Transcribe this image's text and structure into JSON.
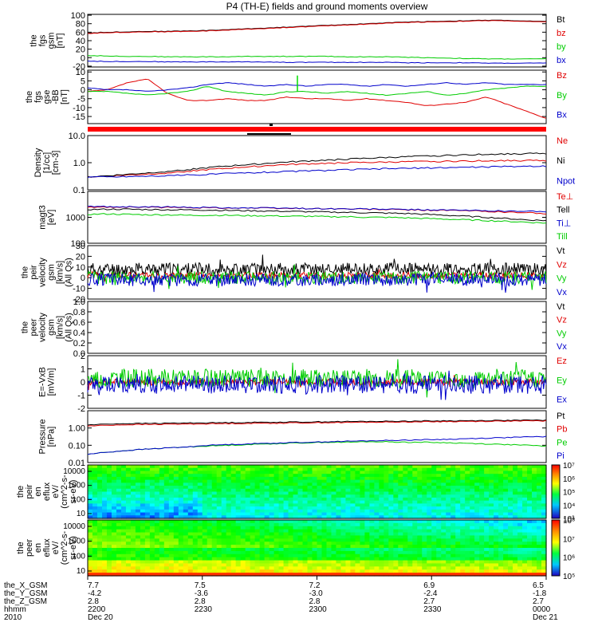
{
  "title": "P4 (TH-E) fields and ground moments overview",
  "colors": {
    "black": "#000000",
    "red": "#e00000",
    "green": "#00cc00",
    "blue": "#0000cc",
    "spike": "#00dd00"
  },
  "chart_data": [
    {
      "type": "line",
      "id": "fgs_gsm",
      "ylabel": [
        "the",
        "fgs",
        "gsm",
        "[nT]"
      ],
      "ylim": [
        -22,
        102
      ],
      "yticks": [
        "100",
        "80",
        "60",
        "40",
        "20",
        "0",
        "-20"
      ],
      "ytick_values": [
        100,
        80,
        60,
        40,
        20,
        0,
        -20
      ],
      "series": [
        {
          "name": "Bt",
          "color": "black",
          "values": [
            58,
            60,
            61,
            62,
            62,
            63,
            64,
            66,
            68,
            70,
            72,
            74,
            76,
            78,
            80,
            82,
            84,
            85,
            86,
            87,
            88,
            88,
            86,
            85
          ]
        },
        {
          "name": "bz",
          "color": "red",
          "values": [
            57,
            59,
            60,
            61,
            61,
            62,
            63,
            65,
            67,
            69,
            71,
            73,
            75,
            77,
            79,
            81,
            83,
            84,
            85,
            86,
            87,
            87,
            85,
            84
          ]
        },
        {
          "name": "by",
          "color": "green",
          "values": [
            5,
            4,
            3,
            3,
            2,
            2,
            2,
            2,
            3,
            3,
            3,
            3,
            3,
            2,
            2,
            2,
            1,
            0,
            -1,
            -2,
            -3,
            -3,
            -3,
            -3
          ]
        },
        {
          "name": "bx",
          "color": "blue",
          "values": [
            -8,
            -9,
            -9,
            -9,
            -10,
            -10,
            -10,
            -10,
            -10,
            -10,
            -11,
            -11,
            -11,
            -11,
            -11,
            -11,
            -12,
            -12,
            -12,
            -12,
            -13,
            -13,
            -13,
            -13
          ]
        }
      ]
    },
    {
      "type": "line",
      "id": "fgs_gse",
      "ylabel": [
        "the",
        "fgs",
        "gse",
        "-BB",
        "[nT]"
      ],
      "ylim": [
        -19,
        11
      ],
      "yticks": [
        "10",
        "5",
        "0",
        "-5",
        "-10",
        "-15"
      ],
      "ytick_values": [
        10,
        5,
        0,
        -5,
        -10,
        -15
      ],
      "series": [
        {
          "name": "Bz",
          "color": "red",
          "values": [
            -1,
            0,
            4,
            6,
            -2,
            -6,
            -6,
            -5,
            -6,
            -6,
            -4,
            -5,
            -5,
            -6,
            -5,
            -6,
            -7,
            -9,
            -8,
            -7,
            -4,
            -8,
            -12,
            -16
          ]
        },
        {
          "name": "By",
          "color": "green",
          "values": [
            -1,
            -1,
            -2,
            -3,
            -2,
            -1,
            2,
            -1,
            -2,
            -3,
            -1,
            -1,
            -2,
            -1,
            -2,
            -3,
            -2,
            -1,
            -3,
            -2,
            0,
            1,
            2,
            2
          ]
        },
        {
          "name": "Bx",
          "color": "blue",
          "values": [
            1,
            0,
            0,
            -1,
            0,
            1,
            3,
            4,
            3,
            2,
            3,
            2,
            3,
            3,
            2,
            3,
            2,
            3,
            4,
            3,
            4,
            3,
            3,
            3
          ]
        }
      ]
    },
    {
      "type": "line",
      "id": "density",
      "scale": "log",
      "ylabel": [
        "Density",
        "[1/cc]",
        "[cm-3]"
      ],
      "ylim": [
        0.1,
        10
      ],
      "yticks": [
        "10.0",
        "1.0",
        "0.1"
      ],
      "ytick_values": [
        10,
        1,
        0.1
      ],
      "series": [
        {
          "name": "Ne",
          "color": "red",
          "values": [
            0.3,
            0.32,
            0.35,
            0.38,
            0.42,
            0.48,
            0.55,
            0.62,
            0.7,
            0.78,
            0.85,
            0.9,
            0.95,
            1.0,
            1.02,
            1.05,
            1.08,
            1.1,
            1.12,
            1.15,
            1.18,
            1.2,
            1.2,
            1.2
          ]
        },
        {
          "name": "Ni",
          "color": "black",
          "values": [
            0.3,
            0.33,
            0.37,
            0.42,
            0.48,
            0.55,
            0.65,
            0.75,
            0.85,
            0.95,
            1.05,
            1.15,
            1.25,
            1.35,
            1.45,
            1.55,
            1.65,
            1.75,
            1.85,
            1.95,
            2.05,
            2.1,
            2.15,
            2.2
          ]
        },
        {
          "name": "Npot",
          "color": "blue",
          "values": [
            0.3,
            0.3,
            0.31,
            0.32,
            0.33,
            0.35,
            0.37,
            0.4,
            0.42,
            0.45,
            0.47,
            0.5,
            0.52,
            0.55,
            0.57,
            0.6,
            0.62,
            0.64,
            0.66,
            0.68,
            0.7,
            0.72,
            0.74,
            0.75
          ]
        }
      ]
    },
    {
      "type": "line",
      "id": "temperature",
      "scale": "log",
      "ylabel": [
        "magt3",
        "[eV]"
      ],
      "ylim": [
        100,
        10000
      ],
      "yticks": [
        "1000",
        "100"
      ],
      "ytick_values": [
        1000,
        100
      ],
      "series": [
        {
          "name": "Te⊥",
          "color": "red",
          "values": [
            2400,
            2500,
            2500,
            2450,
            2400,
            2400,
            2350,
            2300,
            2300,
            2250,
            2200,
            2200,
            2150,
            2100,
            2050,
            2000,
            1950,
            1900,
            1850,
            1800,
            1700,
            1600,
            1500,
            1400
          ]
        },
        {
          "name": "Tell",
          "color": "black",
          "values": [
            2000,
            2050,
            2050,
            2000,
            1950,
            1950,
            1900,
            1850,
            1800,
            1750,
            1700,
            1650,
            1600,
            1550,
            1500,
            1450,
            1400,
            1300,
            1200,
            1100,
            1000,
            900,
            800,
            750
          ]
        },
        {
          "name": "Ti⊥",
          "color": "blue",
          "values": [
            2600,
            2600,
            2550,
            2500,
            2500,
            2450,
            2400,
            2350,
            2300,
            2300,
            2250,
            2200,
            2150,
            2100,
            2100,
            2050,
            2000,
            1950,
            1900,
            1850,
            1800,
            1750,
            1700,
            1700
          ]
        },
        {
          "name": "Till",
          "color": "green",
          "values": [
            1300,
            1350,
            1300,
            1250,
            1250,
            1200,
            1200,
            1200,
            1150,
            1150,
            1100,
            1100,
            1050,
            1050,
            1000,
            1000,
            950,
            900,
            850,
            800,
            750,
            700,
            650,
            600
          ]
        }
      ]
    },
    {
      "type": "line",
      "id": "peir_velocity",
      "ylabel": [
        "the",
        "peir",
        "velocity",
        "gsm",
        "[km/s]",
        "(All Qs)"
      ],
      "ylim": [
        -20,
        30
      ],
      "yticks": [
        "30",
        "20",
        "10",
        "0",
        "-10",
        "-20"
      ],
      "ytick_values": [
        30,
        20,
        10,
        0,
        -10,
        -20
      ],
      "series": [
        {
          "name": "Vt",
          "color": "black",
          "mean": 8,
          "amp": 6,
          "seed": 11
        },
        {
          "name": "Vz",
          "color": "red",
          "mean": 2,
          "amp": 3,
          "seed": 23
        },
        {
          "name": "Vy",
          "color": "green",
          "mean": 0,
          "amp": 6,
          "seed": 37
        },
        {
          "name": "Vx",
          "color": "blue",
          "mean": -2,
          "amp": 6,
          "seed": 51
        }
      ]
    },
    {
      "type": "line",
      "id": "peer_velocity",
      "ylabel": [
        "the",
        "peer",
        "velocity",
        "gsm",
        "[km/s]",
        "(All Qs)"
      ],
      "ylim": [
        0,
        1.0
      ],
      "yticks": [
        "1.0",
        "0.8",
        "0.6",
        "0.4",
        "0.2",
        "0.0"
      ],
      "ytick_values": [
        1.0,
        0.8,
        0.6,
        0.4,
        0.2,
        0.0
      ],
      "series": [
        {
          "name": "Vt",
          "color": "black",
          "values": []
        },
        {
          "name": "Vz",
          "color": "red",
          "values": []
        },
        {
          "name": "Vy",
          "color": "green",
          "values": []
        },
        {
          "name": "Vx",
          "color": "blue",
          "values": []
        }
      ]
    },
    {
      "type": "line",
      "id": "efield",
      "ylabel": [
        "E=-VxB",
        "[mV/m]"
      ],
      "ylim": [
        -2,
        2
      ],
      "yticks": [
        "2",
        "1",
        "0",
        "-1",
        "-2"
      ],
      "ytick_values": [
        2,
        1,
        0,
        -1,
        -2
      ],
      "series": [
        {
          "name": "Ez",
          "color": "red",
          "mean": 0,
          "amp": 0.25,
          "seed": 71
        },
        {
          "name": "Ey",
          "color": "green",
          "mean": 0.3,
          "amp": 0.7,
          "seed": 83
        },
        {
          "name": "Ex",
          "color": "blue",
          "mean": -0.2,
          "amp": 0.7,
          "seed": 97
        }
      ]
    },
    {
      "type": "line",
      "id": "pressure",
      "scale": "log",
      "ylabel": [
        "Pressure",
        "[nPa]"
      ],
      "ylim": [
        0.01,
        10
      ],
      "yticks": [
        "1.00",
        "0.10",
        "0.01"
      ],
      "ytick_values": [
        1,
        0.1,
        0.01
      ],
      "series": [
        {
          "name": "Pt",
          "color": "black",
          "values": [
            1.5,
            1.7,
            1.8,
            1.85,
            1.9,
            1.95,
            2.0,
            2.05,
            2.1,
            2.15,
            2.2,
            2.25,
            2.3,
            2.35,
            2.4,
            2.45,
            2.5,
            2.55,
            2.6,
            2.65,
            2.7,
            2.75,
            2.8,
            2.85
          ]
        },
        {
          "name": "Pb",
          "color": "red",
          "values": [
            1.3,
            1.45,
            1.55,
            1.6,
            1.65,
            1.7,
            1.75,
            1.8,
            1.85,
            1.9,
            1.95,
            2.0,
            2.05,
            2.1,
            2.15,
            2.2,
            2.25,
            2.3,
            2.35,
            2.4,
            2.45,
            2.5,
            2.55,
            2.6
          ]
        },
        {
          "name": "Pe",
          "color": "green",
          "values": [
            0.03,
            0.04,
            0.05,
            0.06,
            0.07,
            0.08,
            0.09,
            0.1,
            0.11,
            0.12,
            0.13,
            0.14,
            0.15,
            0.15,
            0.16,
            0.16,
            0.15,
            0.15,
            0.14,
            0.13,
            0.12,
            0.11,
            0.1,
            0.09
          ]
        },
        {
          "name": "Pi",
          "color": "blue",
          "values": [
            0.03,
            0.04,
            0.05,
            0.06,
            0.07,
            0.08,
            0.1,
            0.11,
            0.12,
            0.13,
            0.14,
            0.15,
            0.16,
            0.17,
            0.18,
            0.19,
            0.2,
            0.21,
            0.22,
            0.24,
            0.26,
            0.28,
            0.3,
            0.32
          ]
        }
      ]
    },
    {
      "type": "heatmap",
      "id": "peir_spec",
      "ylabel": [
        "the",
        "peir",
        "en",
        "eflux",
        "eV/",
        "(cm^2-s-",
        "sr-eV)"
      ],
      "yticks": [
        "10000",
        "1000",
        "100",
        "10"
      ],
      "colorbar_ticks": [
        "10⁷",
        "10⁶",
        "10⁵",
        "10⁴",
        "10³"
      ],
      "colorbar_exponents": [
        7,
        6,
        5,
        4,
        3
      ]
    },
    {
      "type": "heatmap",
      "id": "peer_spec",
      "ylabel": [
        "the",
        "peer",
        "en",
        "eflux",
        "eV/",
        "(cm^2-s-",
        "sr-eV)"
      ],
      "yticks": [
        "10000",
        "1000",
        "100",
        "10"
      ],
      "colorbar_ticks": [
        "10⁸",
        "10⁷",
        "10⁶",
        "10⁵"
      ],
      "colorbar_exponents": [
        8,
        7,
        6,
        5
      ]
    }
  ],
  "xaxis": {
    "row_labels": [
      "the_X_GSM",
      "the_Y_GSM",
      "the_Z_GSM",
      "hhmm",
      "2010"
    ],
    "columns": [
      {
        "values": [
          "7.7",
          "-4.2",
          "2.8",
          "2200",
          "Dec 20"
        ]
      },
      {
        "values": [
          "7.5",
          "-3.6",
          "2.8",
          "2230",
          ""
        ]
      },
      {
        "values": [
          "7.2",
          "-3.0",
          "2.8",
          "2300",
          ""
        ]
      },
      {
        "values": [
          "6.9",
          "-2.4",
          "2.7",
          "2330",
          ""
        ]
      },
      {
        "values": [
          "6.5",
          "-1.8",
          "2.7",
          "0000",
          "Dec 21"
        ]
      }
    ]
  }
}
